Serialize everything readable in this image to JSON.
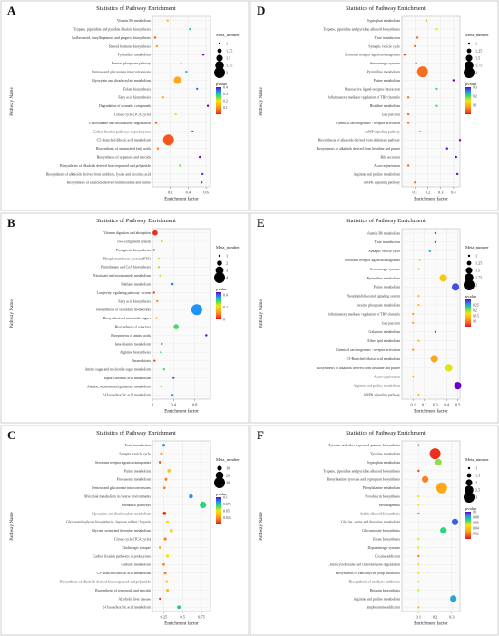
{
  "chart_data": [
    {
      "panel": "A",
      "type": "scatter",
      "title": "Statistics of Pathway Enrichment",
      "xlabel": "Enrichment factor",
      "ylabel": "Pathway Name",
      "xlim": [
        0.0,
        0.65
      ],
      "xticks": [
        0.2,
        0.4,
        0.6
      ],
      "pvalue_range": [
        0.0,
        0.4
      ],
      "pvalue_ticks": [
        0.4,
        0.3,
        0.2,
        0.1
      ],
      "size_legend_title": "Meta_number",
      "size_ticks": [
        1.0,
        1.25,
        1.5,
        1.75,
        2.0
      ],
      "size_range": [
        1,
        2
      ],
      "pvalue_title": "pvalue",
      "categories": [
        "Vitamin B6 metabolism",
        "Tropane, piperidine and pyridine alkaloid biosynthesis",
        "Isoflavonoid, diarylheptanoid and gingerol biosynthesis",
        "Steroid hormone biosynthesis",
        "Pyrimidine metabolism",
        "Pentose phosphate pathway",
        "Pentose and glucuronate interconversions",
        "Glyoxylate and dicarboxylate metabolism",
        "Folate biosynthesis",
        "Fatty acid biosynthesis",
        "Degradation of aromatic compounds",
        "Citrate cycle (TCA cycle)",
        "Chloroalkane and chloroalkene degradation",
        "Carbon fixation pathways in prokaryotes",
        "C5-Branched dibasic acid metabolism",
        "Biosynthesis of unsaturated fatty acids",
        "Biosynthesis of terpenoid and steroids",
        "Biosynthesis of alkaloids derived from terpenoid and polyketide",
        "Biosynthesis of alkaloids derived from ornithine, lysine and nicotinic acid",
        "Biosynthesis of alkaloids derived from histidine and purine"
      ],
      "x": [
        0.17,
        0.42,
        0.03,
        0.05,
        0.57,
        0.32,
        0.38,
        0.28,
        0.5,
        0.12,
        0.62,
        0.26,
        0.04,
        0.45,
        0.18,
        0.06,
        0.53,
        0.31,
        0.56,
        0.55
      ],
      "pvalue": [
        0.15,
        0.28,
        0.05,
        0.1,
        0.4,
        0.2,
        0.3,
        0.12,
        0.35,
        0.12,
        0.4,
        0.2,
        0.05,
        0.35,
        0.05,
        0.08,
        0.4,
        0.25,
        0.38,
        0.38
      ],
      "size": [
        1,
        1,
        1,
        1,
        1,
        1,
        1,
        1.6,
        1,
        1,
        1,
        1,
        1,
        1,
        2,
        1,
        1,
        1,
        1,
        1
      ]
    },
    {
      "panel": "B",
      "type": "scatter",
      "title": "Statistics of Pathway Enrichment",
      "xlabel": "Enrichment factor",
      "ylabel": "Pathway Name",
      "xlim": [
        0.0,
        1.1
      ],
      "xticks": [
        0.0,
        0.4,
        0.8
      ],
      "pvalue_range": [
        0.0,
        0.45
      ],
      "pvalue_ticks": [
        0.4,
        0.2,
        0.0
      ],
      "size_legend_title": "Meta_number",
      "size_ticks": [
        1,
        2,
        3,
        4
      ],
      "size_range": [
        1,
        4
      ],
      "pvalue_title": "pvalue",
      "categories": [
        "Vitamin digestion and absorption",
        "Two-component system",
        "Prodigiosin biosynthesis",
        "Phosphotransferase system (PTS)",
        "Pantothenate and CoA biosynthesis",
        "Nicotinate and nicotinamide metabolism",
        "Methane metabolism",
        "Longevity regulating pathway - worm",
        "Fatty acid biosynthesis",
        "Biosynthesis of secondary metabolites",
        "Biosynthesis of nucleotide sugars",
        "Biosynthesis of cofactors",
        "Biosynthesis of amino acids",
        "beta-Alanine metabolism",
        "Arginine biosynthesis",
        "Anaerobiosis",
        "Amino sugar and nucleotide sugar metabolism",
        "alpha-Linolenic acid metabolism",
        "Alanine, aspartate and glutamate metabolism",
        "2-Oxocarboxylic acid metabolism"
      ],
      "x": [
        0.05,
        0.18,
        0.03,
        0.12,
        0.12,
        0.15,
        0.38,
        0.03,
        0.09,
        0.84,
        0.08,
        0.45,
        1.02,
        0.18,
        0.16,
        0.04,
        0.22,
        0.4,
        0.17,
        0.38
      ],
      "pvalue": [
        0.02,
        0.2,
        0.05,
        0.25,
        0.25,
        0.25,
        0.4,
        0.05,
        0.1,
        0.38,
        0.15,
        0.3,
        0.45,
        0.3,
        0.3,
        0.05,
        0.3,
        0.42,
        0.3,
        0.38
      ],
      "size": [
        2,
        1,
        1,
        1,
        1,
        1,
        1,
        1,
        1,
        4,
        1,
        2,
        1,
        1,
        1,
        1,
        1,
        1,
        1,
        1
      ]
    },
    {
      "panel": "C",
      "type": "scatter",
      "title": "Statistics of Pathway Enrichment",
      "xlabel": "Enrichment factor",
      "ylabel": "Pathway Name",
      "xlim": [
        0.1,
        0.87
      ],
      "xticks": [
        0.25,
        0.5,
        0.75
      ],
      "pvalue_range": [
        0.0,
        0.1
      ],
      "pvalue_ticks": [
        0.1,
        0.075,
        0.05,
        0.025
      ],
      "size_legend_title": "Meta_number",
      "size_ticks": [
        10,
        20,
        30
      ],
      "size_range": [
        2,
        30
      ],
      "pvalue_title": "pvalue",
      "categories": [
        "Taste transduction",
        "Synaptic vesicle cycle",
        "Serotonin receptor agonists/antagonists",
        "Purine metabolism",
        "Proteasome metabolism",
        "Pentose and glucuronate interconversions",
        "Microbial metabolism in diverse environments",
        "Metabolic pathways",
        "Glyoxylate and dicarboxylate metabolism",
        "Glycosaminoglycan biosynthesis - heparan sulfate / heparin",
        "Glycine, serine and threonine metabolism",
        "Citrate cycle (TCA cycle)",
        "Cholinergic synapse",
        "Carbon fixation pathways in prokaryotes",
        "Caffeine metabolism",
        "C5-Branched dibasic acid metabolism",
        "Biosynthesis of alkaloids derived from terpenoid and polyketide",
        "Biosynthesis of terpenoids and steroids",
        "Alcoholic liver disease",
        "2-Oxocarboxylic acid metabolism"
      ],
      "x": [
        0.25,
        0.22,
        0.2,
        0.32,
        0.28,
        0.26,
        0.61,
        0.77,
        0.26,
        0.3,
        0.35,
        0.27,
        0.2,
        0.3,
        0.25,
        0.27,
        0.29,
        0.3,
        0.2,
        0.45
      ],
      "pvalue": [
        0.085,
        0.03,
        0.01,
        0.04,
        0.02,
        0.02,
        0.085,
        0.07,
        0.005,
        0.045,
        0.045,
        0.02,
        0.03,
        0.05,
        0.02,
        0.02,
        0.045,
        0.035,
        0.005,
        0.075
      ],
      "size": [
        4,
        4,
        3,
        6,
        4,
        3,
        8,
        16,
        6,
        4,
        6,
        4,
        3,
        5,
        3,
        4,
        4,
        4,
        2,
        6
      ]
    },
    {
      "panel": "D",
      "type": "scatter",
      "title": "Statistics of Pathway Enrichment",
      "xlabel": "Enrichment factor",
      "ylabel": "Pathway Name",
      "xlim": [
        0.0,
        0.45
      ],
      "xticks": [
        0.1,
        0.2,
        0.3,
        0.4
      ],
      "pvalue_range": [
        0.0,
        0.3
      ],
      "pvalue_ticks": [
        0.3,
        0.2,
        0.1
      ],
      "size_legend_title": "Meta_number",
      "size_ticks": [
        1.0,
        1.25,
        1.5,
        1.75,
        2.0
      ],
      "size_range": [
        1,
        2
      ],
      "pvalue_title": "pvalue",
      "categories": [
        "Tryptophan metabolism",
        "Tropane, piperidine and pyridine alkaloid biosynthesis",
        "Taste transduction",
        "Synaptic vesicle cycle",
        "Serotonin receptor agonists/antagonists",
        "Serotonergic synapse",
        "Pyrimidine metabolism",
        "Purine metabolism",
        "Neuroactive ligand-receptor interaction",
        "Inflammatory mediator regulation of TRP channels",
        "Histidine metabolism",
        "Gap junction",
        "Chemical carcinogenesis - receptor activation",
        "cAMP signaling pathway",
        "Biosynthesis of alkaloids derived from shikimate pathway",
        "Biosynthesis of alkaloids derived from histidine and purine",
        "Bile secretion",
        "Axon regeneration",
        "Arginine and proline metabolism",
        "AMPK signaling pathway"
      ],
      "x": [
        0.19,
        0.27,
        0.12,
        0.1,
        0.02,
        0.11,
        0.16,
        0.4,
        0.27,
        0.05,
        0.27,
        0.05,
        0.05,
        0.14,
        0.45,
        0.35,
        0.42,
        0.05,
        0.43,
        0.1
      ],
      "pvalue": [
        0.1,
        0.15,
        0.05,
        0.05,
        0.02,
        0.05,
        0.05,
        0.3,
        0.2,
        0.05,
        0.2,
        0.05,
        0.05,
        0.1,
        0.3,
        0.3,
        0.3,
        0.05,
        0.3,
        0.05
      ],
      "size": [
        1,
        1,
        1,
        1,
        1,
        1,
        2,
        1,
        1,
        1,
        1,
        1,
        1,
        1,
        1,
        1,
        1,
        1,
        1,
        1
      ]
    },
    {
      "panel": "E",
      "type": "scatter",
      "title": "Statistics of Pathway Enrichment",
      "xlabel": "Enrichment factor",
      "ylabel": "Pathway Name",
      "xlim": [
        0.0,
        0.52
      ],
      "xticks": [
        0.1,
        0.2,
        0.3,
        0.4,
        0.5
      ],
      "pvalue_range": [
        0.05,
        0.3
      ],
      "pvalue_ticks": [
        0.25,
        0.2,
        0.15,
        0.1
      ],
      "size_legend_title": "Meta_number",
      "size_ticks": [
        1.0,
        1.25,
        1.5,
        1.75,
        2.0
      ],
      "size_range": [
        1,
        2
      ],
      "pvalue_title": "pvalue",
      "categories": [
        "Vitamin B6 metabolism",
        "Taste transduction",
        "Synaptic vesicle cycle",
        "Serotonin receptor agonists/antagonists",
        "Serotonergic synapse",
        "Pyrimidine metabolism",
        "Purine metabolism",
        "Phosphatidylinositol signaling system",
        "Inositol phosphate metabolism",
        "Inflammatory mediator regulation of TRP channels",
        "Gap junction",
        "Galactose metabolism",
        "Ether lipid metabolism",
        "Chemical carcinogenesis - receptor activation",
        "C5-Branched dibasic acid metabolism",
        "Biosynthesis of alkaloids derived from histidine and purine",
        "Axon regeneration",
        "Arginine and proline metabolism",
        "AMPK signaling pathway"
      ],
      "x": [
        0.3,
        0.3,
        0.25,
        0.16,
        0.15,
        0.37,
        0.48,
        0.15,
        0.15,
        0.1,
        0.1,
        0.3,
        0.15,
        0.1,
        0.29,
        0.42,
        0.1,
        0.5,
        0.15
      ],
      "pvalue": [
        0.28,
        0.28,
        0.25,
        0.18,
        0.15,
        0.15,
        0.28,
        0.15,
        0.15,
        0.12,
        0.12,
        0.28,
        0.15,
        0.12,
        0.12,
        0.18,
        0.12,
        0.3,
        0.15
      ],
      "size": [
        1,
        1,
        1,
        1,
        1,
        1.6,
        1.6,
        1,
        1,
        1,
        1,
        1,
        1,
        1,
        1.6,
        1.6,
        1,
        1.6,
        1
      ]
    },
    {
      "panel": "F",
      "type": "scatter",
      "title": "Statistics of Pathway Enrichment",
      "xlabel": "Enrichment factor",
      "ylabel": "Pathway Name",
      "xlim": [
        0.0,
        0.35
      ],
      "xticks": [
        0.1,
        0.2,
        0.3
      ],
      "pvalue_range": [
        0.0,
        0.1
      ],
      "pvalue_ticks": [
        0.1,
        0.08,
        0.06,
        0.04,
        0.02
      ],
      "size_legend_title": "Meta_number",
      "size_ticks": [
        1.0,
        1.5,
        2.0,
        2.5,
        3.0
      ],
      "size_range": [
        1,
        3
      ],
      "pvalue_title": "pvalue",
      "categories": [
        "Tyrosine and other terpenoid-quinone biosynthesis",
        "Tyrosine metabolism",
        "Tryptophan metabolism",
        "Tropane, piperidine and pyridine alkaloid biosynthesis",
        "Phenylalanine, tyrosine and tryptophan biosynthesis",
        "Phenylalanine metabolism",
        "Novobiocin biosynthesis",
        "Melanogenesis",
        "Indole alkaloid biosynthesis",
        "Glycine, serine and threonine metabolism",
        "Glucosinolate biosynthesis",
        "Folate biosynthesis",
        "Dopaminergic synapse",
        "Cocaine addiction",
        "Chlorocyclohexane and chlorobenzene degradation",
        "Biosynthesis of vancomycin group antibiotics",
        "Biosynthesis of enediyne antibiotics",
        "Betalain biosynthesis",
        "Arginine and proline metabolism",
        "Amphetamine addiction"
      ],
      "x": [
        0.1,
        0.2,
        0.22,
        0.1,
        0.14,
        0.24,
        0.1,
        0.1,
        0.1,
        0.32,
        0.25,
        0.1,
        0.1,
        0.1,
        0.1,
        0.1,
        0.1,
        0.1,
        0.31,
        0.1
      ],
      "pvalue": [
        0.02,
        0.005,
        0.06,
        0.01,
        0.02,
        0.03,
        0.05,
        0.05,
        0.02,
        0.09,
        0.07,
        0.05,
        0.05,
        0.02,
        0.05,
        0.05,
        0.05,
        0.05,
        0.08,
        0.04
      ],
      "size": [
        1,
        3,
        2,
        1,
        2,
        3,
        1,
        1,
        1,
        2,
        2,
        1,
        1,
        1,
        1,
        1,
        1,
        1,
        2,
        1
      ]
    }
  ]
}
